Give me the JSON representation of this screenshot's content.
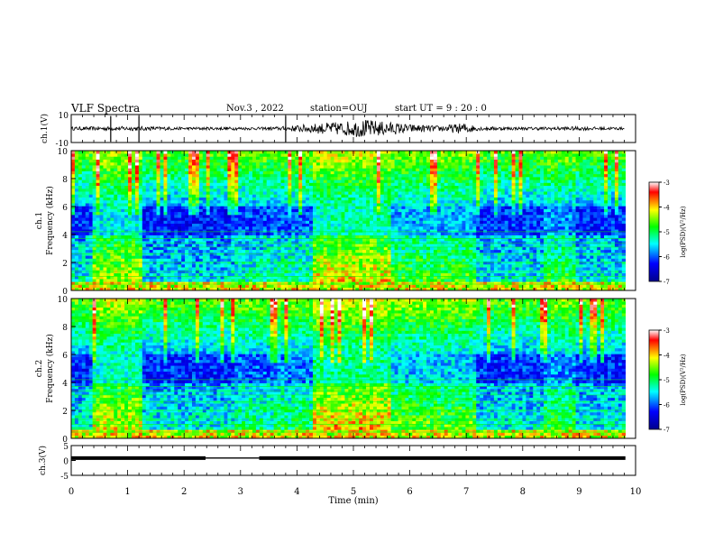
{
  "header": {
    "title": "VLF Spectra",
    "date": "Nov.3  , 2022",
    "station": "station=OUJ",
    "start": "start  UT  =   9  : 20 : 0"
  },
  "chart_data": [
    {
      "type": "line",
      "panel": "ch1-waveform",
      "ylabel": "ch.1(V)",
      "ylim": [
        -10,
        10
      ],
      "y_ticks": [
        "10",
        "-10"
      ],
      "x_range": [
        0,
        10
      ],
      "series_color": "#000000",
      "approx_envelope": [
        {
          "x": 0.0,
          "amp": 1.2
        },
        {
          "x": 0.7,
          "amp": 1.5
        },
        {
          "x": 1.2,
          "amp": 1.6
        },
        {
          "x": 2.0,
          "amp": 1.0
        },
        {
          "x": 2.8,
          "amp": 1.1
        },
        {
          "x": 3.4,
          "amp": 1.0
        },
        {
          "x": 3.7,
          "amp": 1.4
        },
        {
          "x": 4.3,
          "amp": 3.5
        },
        {
          "x": 4.8,
          "amp": 5.0
        },
        {
          "x": 5.2,
          "amp": 6.5
        },
        {
          "x": 5.7,
          "amp": 4.5
        },
        {
          "x": 6.0,
          "amp": 3.0
        },
        {
          "x": 6.5,
          "amp": 2.0
        },
        {
          "x": 7.0,
          "amp": 4.0
        },
        {
          "x": 7.2,
          "amp": 1.5
        },
        {
          "x": 8.0,
          "amp": 1.0
        },
        {
          "x": 8.8,
          "amp": 1.4
        },
        {
          "x": 9.8,
          "amp": 1.0
        }
      ],
      "spikes": [
        {
          "x": 0.7,
          "amp": 10
        },
        {
          "x": 1.2,
          "amp": 10
        },
        {
          "x": 3.8,
          "amp": 10
        }
      ]
    },
    {
      "type": "heatmap",
      "panel": "ch1-spectrogram",
      "ylabel": "ch.1\nFrequency (kHz)",
      "ylim": [
        0,
        10
      ],
      "y_ticks": [
        "0",
        "2",
        "4",
        "6",
        "8",
        "10"
      ],
      "x_range": [
        0,
        10
      ],
      "colorbar": {
        "label": "log(PSD)(V²/Hz)",
        "range": [
          -7,
          -3
        ],
        "ticks": [
          "-3",
          "-4",
          "-5",
          "-6",
          "-7"
        ]
      },
      "segments": [
        {
          "x0": 0.0,
          "x1": 0.4,
          "level": 0.35
        },
        {
          "x0": 0.4,
          "x1": 1.25,
          "level": 0.75
        },
        {
          "x0": 1.25,
          "x1": 2.9,
          "level": 0.3
        },
        {
          "x0": 2.9,
          "x1": 3.4,
          "level": 0.4
        },
        {
          "x0": 3.4,
          "x1": 4.3,
          "level": 0.45
        },
        {
          "x0": 4.3,
          "x1": 5.65,
          "level": 0.85
        },
        {
          "x0": 5.65,
          "x1": 7.2,
          "level": 0.6
        },
        {
          "x0": 7.2,
          "x1": 8.4,
          "level": 0.35
        },
        {
          "x0": 8.4,
          "x1": 8.95,
          "level": 0.55
        },
        {
          "x0": 8.95,
          "x1": 9.8,
          "level": 0.35
        }
      ]
    },
    {
      "type": "heatmap",
      "panel": "ch2-spectrogram",
      "ylabel": "ch.2\nFrequency (kHz)",
      "ylim": [
        0,
        10
      ],
      "y_ticks": [
        "0",
        "2",
        "4",
        "6",
        "8",
        "10"
      ],
      "x_range": [
        0,
        10
      ],
      "colorbar": {
        "label": "log(PSD)(V²/Hz)",
        "range": [
          -7,
          -3
        ],
        "ticks": [
          "-3",
          "-4",
          "-5",
          "-6",
          "-7"
        ]
      },
      "segments": [
        {
          "x0": 0.0,
          "x1": 0.4,
          "level": 0.35
        },
        {
          "x0": 0.4,
          "x1": 1.25,
          "level": 0.8
        },
        {
          "x0": 1.25,
          "x1": 2.9,
          "level": 0.35
        },
        {
          "x0": 2.9,
          "x1": 3.6,
          "level": 0.45
        },
        {
          "x0": 3.6,
          "x1": 4.3,
          "level": 0.5
        },
        {
          "x0": 4.3,
          "x1": 5.65,
          "level": 0.9
        },
        {
          "x0": 5.65,
          "x1": 7.2,
          "level": 0.65
        },
        {
          "x0": 7.2,
          "x1": 8.4,
          "level": 0.35
        },
        {
          "x0": 8.4,
          "x1": 8.95,
          "level": 0.55
        },
        {
          "x0": 8.95,
          "x1": 9.8,
          "level": 0.35
        }
      ]
    },
    {
      "type": "line",
      "panel": "ch3-trace",
      "ylabel": "ch.3(V)",
      "ylim": [
        -5,
        5
      ],
      "y_ticks": [
        "5",
        "0",
        "-5"
      ],
      "x_range": [
        0,
        10
      ],
      "xlabel": "Time  (min)",
      "x_ticks": [
        "0",
        "1",
        "2",
        "3",
        "4",
        "5",
        "6",
        "7",
        "8",
        "9",
        "10"
      ],
      "series_color": "#000000",
      "value": 0.8,
      "gap": [
        2.38,
        3.33
      ],
      "end_x": 9.82
    }
  ],
  "colors": {
    "dark": "#00008b",
    "blue": "#0000ff",
    "cyan": "#00ffff",
    "green": "#00ff00",
    "yellow": "#ffff00",
    "red": "#ff0000",
    "frame": "#000000"
  }
}
